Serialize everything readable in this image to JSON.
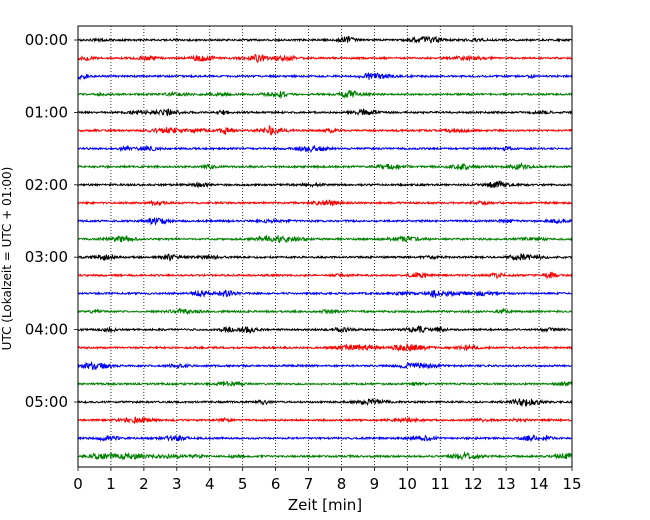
{
  "chart_data": {
    "type": "line",
    "chart_kind": "helicorder",
    "xlabel": "Zeit  [min]",
    "ylabel": "UTC (Lokalzeit = UTC + 01:00)",
    "xlim": [
      0,
      15
    ],
    "x_ticks": [
      0,
      1,
      2,
      3,
      4,
      5,
      6,
      7,
      8,
      9,
      10,
      11,
      12,
      13,
      14,
      15
    ],
    "y_tick_labels": [
      "00:00",
      "01:00",
      "02:00",
      "03:00",
      "04:00",
      "05:00"
    ],
    "trace_interval_minutes": 15,
    "trace_count": 24,
    "trace_colors": [
      "#000000",
      "#ff0000",
      "#0000ff",
      "#008000"
    ],
    "vertical_grid": "dotted",
    "series": [
      {
        "start": "00:00",
        "color": "#000000"
      },
      {
        "start": "00:15",
        "color": "#ff0000"
      },
      {
        "start": "00:30",
        "color": "#0000ff"
      },
      {
        "start": "00:45",
        "color": "#008000"
      },
      {
        "start": "01:00",
        "color": "#000000"
      },
      {
        "start": "01:15",
        "color": "#ff0000"
      },
      {
        "start": "01:30",
        "color": "#0000ff"
      },
      {
        "start": "01:45",
        "color": "#008000"
      },
      {
        "start": "02:00",
        "color": "#000000"
      },
      {
        "start": "02:15",
        "color": "#ff0000"
      },
      {
        "start": "02:30",
        "color": "#0000ff"
      },
      {
        "start": "02:45",
        "color": "#008000"
      },
      {
        "start": "03:00",
        "color": "#000000"
      },
      {
        "start": "03:15",
        "color": "#ff0000"
      },
      {
        "start": "03:30",
        "color": "#0000ff"
      },
      {
        "start": "03:45",
        "color": "#008000"
      },
      {
        "start": "04:00",
        "color": "#000000"
      },
      {
        "start": "04:15",
        "color": "#ff0000"
      },
      {
        "start": "04:30",
        "color": "#0000ff"
      },
      {
        "start": "04:45",
        "color": "#008000"
      },
      {
        "start": "05:00",
        "color": "#000000"
      },
      {
        "start": "05:15",
        "color": "#ff0000"
      },
      {
        "start": "05:30",
        "color": "#0000ff"
      },
      {
        "start": "05:45",
        "color": "#008000"
      }
    ]
  }
}
